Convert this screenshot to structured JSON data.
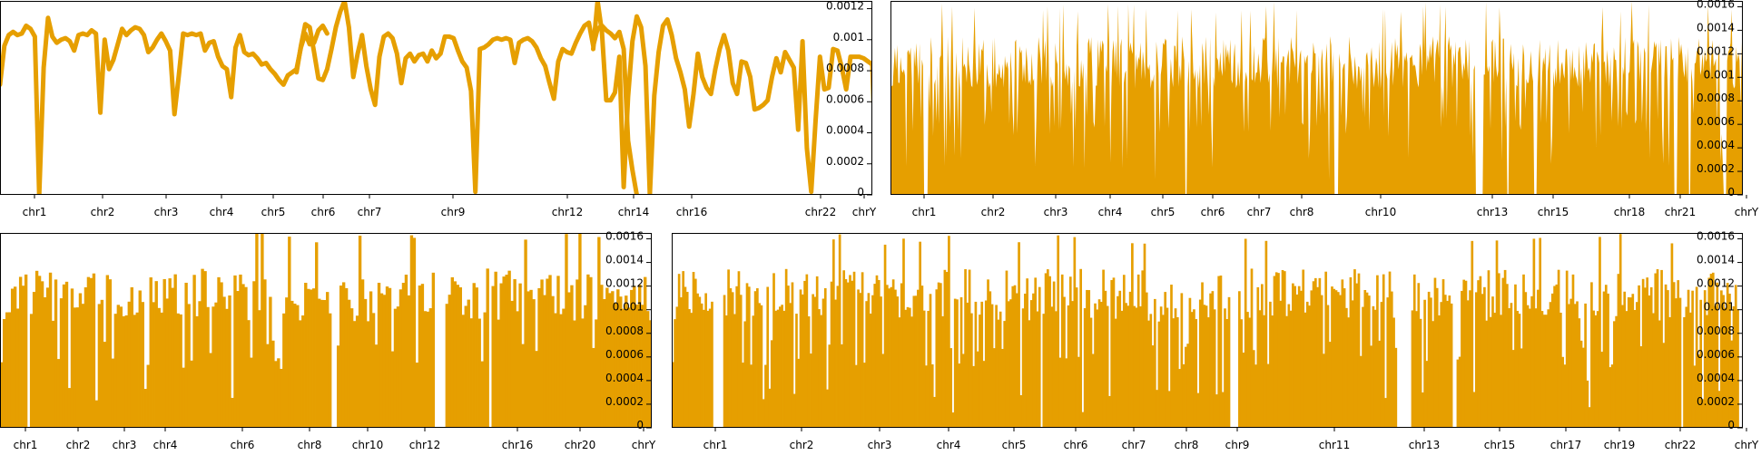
{
  "colors": {
    "series": "#e69f00",
    "axis": "#000000",
    "background": "#ffffff"
  },
  "chart_data": [
    {
      "type": "line",
      "grid": false,
      "ylim": [
        0,
        0.00125
      ],
      "xlim": [
        0,
        200
      ],
      "y_ticks": [
        0,
        0.0002,
        0.0004,
        0.0006,
        0.0008,
        0.001,
        0.0012
      ],
      "y_tick_labels": [
        "0",
        "0.0002",
        "0.0004",
        "0.0006",
        "0.0008",
        "0.001",
        "0.0012"
      ],
      "x_ticks": [
        {
          "label": "chr1",
          "x": 8
        },
        {
          "label": "chr2",
          "x": 24
        },
        {
          "label": "chr3",
          "x": 38
        },
        {
          "label": "chr4",
          "x": 51
        },
        {
          "label": "chr5",
          "x": 63
        },
        {
          "label": "chr6",
          "x": 74
        },
        {
          "label": "chr7",
          "x": 85
        },
        {
          "label": "chr9",
          "x": 104
        },
        {
          "label": "chr12",
          "x": 130
        },
        {
          "label": "chr14",
          "x": 145
        },
        {
          "label": "chr16",
          "x": 158
        },
        {
          "label": "chr22",
          "x": 185
        },
        {
          "label": "chrY",
          "x": 198
        }
      ],
      "series": [
        {
          "segments": [
            {
              "x0": 0,
              "values": [
                0.00071,
                0.00096,
                0.00103,
                0.00105,
                0.00103,
                0.00104,
                0.00109,
                0.00107,
                0.00102,
                0,
                0.00082,
                0.00114,
                0.00102,
                0.00098,
                0.001,
                0.00101,
                0.00099,
                0.00093,
                0.00103,
                0.00104,
                0.00103,
                0.00106,
                0.00104,
                0.00053,
                0.001,
                0.00081,
                0.00087,
                0.00097,
                0.00107,
                0.00103,
                0.00106,
                0.00108,
                0.00107,
                0.00103,
                0.00092,
                0.00095,
                0.001,
                0.00104,
                0.00099,
                0.00093,
                0.00052,
                0.00077,
                0.00104,
                0.00103,
                0.00104,
                0.00103,
                0.00104,
                0.00093,
                0.00098,
                0.00099,
                0.00089,
                0.00083,
                0.00081,
                0.00063,
                0.00095,
                0.00103,
                0.00092,
                0.0009,
                0.00091,
                0.00088,
                0.00084,
                0.00085,
                0.00081,
                0.00078,
                0.00074,
                0.00071,
                0.00077,
                0.00079,
                0.00081,
                0.00095,
                0.00104,
                0.00097,
                0.00098,
                0.00106,
                0.00109,
                0.00104
              ]
            },
            {
              "x0": 68,
              "values": [
                0.00079,
                0.00096,
                0.0011,
                0.00108,
                0.00092,
                0.00075,
                0.00074,
                0.00081,
                0.00094,
                0.00108,
                0.00118,
                0.00125,
                0.00108,
                0.00076,
                0.00091,
                0.00103,
                0.00083,
                0.00068,
                0.00058,
                0.00089,
                0.00102,
                0.00104,
                0.00101,
                0.00091,
                0.00072,
                0.00088,
                0.00091,
                0.00086,
                0.0009,
                0.00091,
                0.00086,
                0.00093,
                0.00088,
                0.00091,
                0.00102,
                0.00102,
                0.00101,
                0.00093,
                0.00086,
                0.00082,
                0.00067,
                2e-05,
                0.00094,
                0.00095,
                0.00097,
                0.001,
                0.00101,
                0.001,
                0.00101,
                0.001,
                0.00085,
                0.00098,
                0.001,
                0.00101,
                0.00099,
                0.00095,
                0.00088,
                0.00083,
                0.00072,
                0.00062,
                0.00086,
                0.00094,
                0.00092,
                0.00091,
                0.00098,
                0.00104,
                0.00109,
                0.00111,
                0.00096,
                0.00107,
                0.00109,
                0.00106,
                0.00104,
                0.00101,
                0.00105,
                0.00094,
                0.00035,
                0.00016,
                0
              ]
            },
            {
              "x0": 136,
              "values": [
                0.00094,
                0.00125,
                0.00105,
                0.00061,
                0.00061,
                0.00066,
                0.00089,
                5e-05,
                0.00063,
                0.00099,
                0.00115,
                0.00108,
                0.00083,
                0,
                0.00064,
                0.00092,
                0.00109,
                0.00113,
                0.00103,
                0.00088,
                0.00079,
                0.00068,
                0.00044,
                0.00065,
                0.00091,
                0.00076,
                0.00069,
                0.00065,
                0.00081,
                0.00094,
                0.00103,
                0.00093,
                0.00072,
                0.00065,
                0.00086,
                0.00085,
                0.00076,
                0.00055,
                0.00056,
                0.00058,
                0.00061,
                0.00076,
                0.00088,
                0.00079,
                0.00092,
                0.00087,
                0.00082,
                0.00042,
                0.00099,
                0.0003,
                2e-05,
                0.00048,
                0.00089,
                0.00068,
                0.00069,
                0.00094,
                0.00093,
                0.00082,
                0.00068,
                0.00089,
                0.00089,
                0.00089,
                0.00088,
                0.00086,
                0.00084,
                0
              ]
            }
          ]
        }
      ]
    },
    {
      "type": "area",
      "grid": false,
      "ylim": [
        0,
        0.00165
      ],
      "y_ticks": [
        0,
        0.0002,
        0.0004,
        0.0006,
        0.0008,
        0.001,
        0.0012,
        0.0014,
        0.0016
      ],
      "y_tick_labels": [
        "0",
        "0.0002",
        "0.0004",
        "0.0006",
        "0.0008",
        "0.001",
        "0.0012",
        "0.0014",
        "0.0016"
      ],
      "x_tick_labels": [
        "chr1",
        "chr2",
        "chr3",
        "chr4",
        "chr5",
        "chr6",
        "chr7",
        "chr8",
        "chr10",
        "chr13",
        "chr15",
        "chr18",
        "chr21",
        "chrY"
      ]
    },
    {
      "type": "bar",
      "grid": false,
      "ylim": [
        0,
        0.00165
      ],
      "y_ticks": [
        0,
        0.0002,
        0.0004,
        0.0006,
        0.0008,
        0.001,
        0.0012,
        0.0014,
        0.0016
      ],
      "y_tick_labels": [
        "0",
        "0.0002",
        "0.0004",
        "0.0006",
        "0.0008",
        "0.001",
        "0.0012",
        "0.0014",
        "0.0016"
      ],
      "x_tick_labels": [
        "chr1",
        "chr2",
        "chr3",
        "chr4",
        "chr6",
        "chr8",
        "chr10",
        "chr12",
        "chr16",
        "chr20",
        "chrY"
      ]
    },
    {
      "type": "bar",
      "grid": false,
      "ylim": [
        0,
        0.00165
      ],
      "y_ticks": [
        0,
        0.0002,
        0.0004,
        0.0006,
        0.0008,
        0.001,
        0.0012,
        0.0014,
        0.0016
      ],
      "y_tick_labels": [
        "0",
        "0.0002",
        "0.0004",
        "0.0006",
        "0.0008",
        "0.001",
        "0.0012",
        "0.0014",
        "0.0016"
      ],
      "x_tick_labels": [
        "chr1",
        "chr2",
        "chr3",
        "chr4",
        "chr5",
        "chr6",
        "chr7",
        "chr8",
        "chr9",
        "chr11",
        "chr13",
        "chr15",
        "chr17",
        "chr19",
        "chr22",
        "chrY"
      ]
    }
  ]
}
